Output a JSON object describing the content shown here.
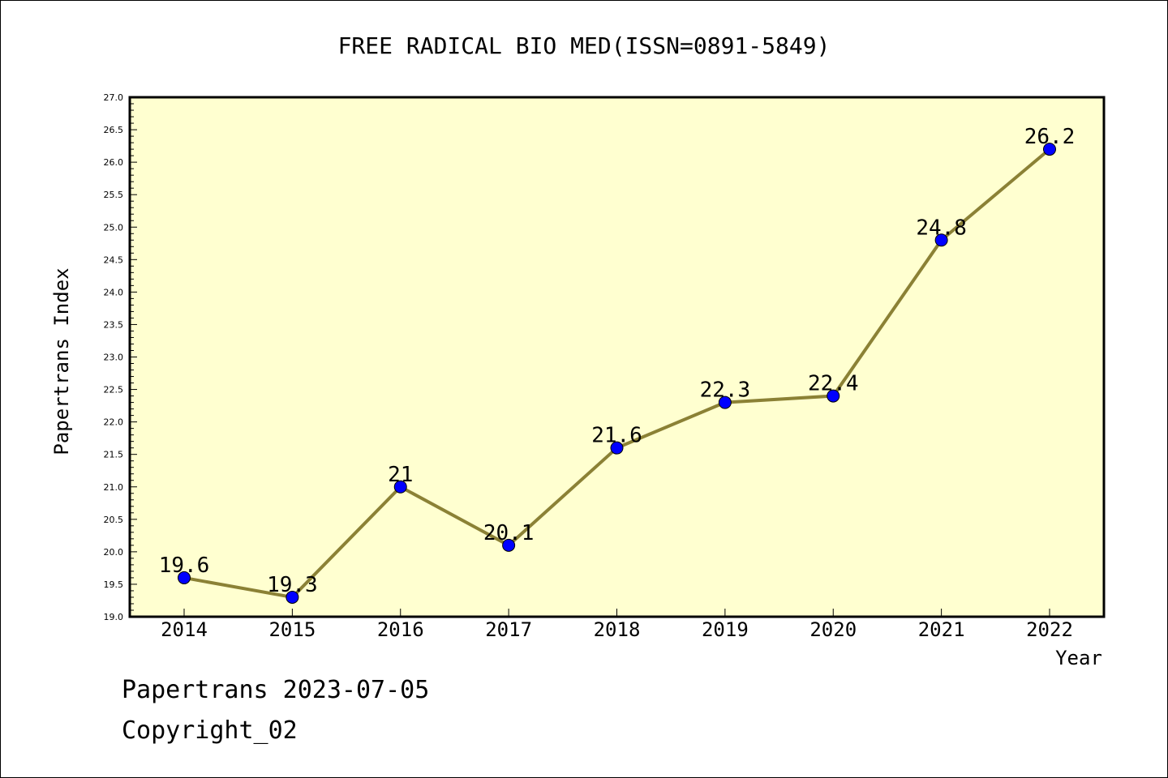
{
  "chart_data": {
    "type": "line",
    "title": "FREE RADICAL BIO MED(ISSN=0891-5849)",
    "xlabel": "Year",
    "ylabel": "Papertrans Index",
    "categories": [
      "2014",
      "2015",
      "2016",
      "2017",
      "2018",
      "2019",
      "2020",
      "2021",
      "2022"
    ],
    "values": [
      19.6,
      19.3,
      21.0,
      20.1,
      21.6,
      22.3,
      22.4,
      24.8,
      26.2
    ],
    "data_labels": [
      "19.6",
      "19.3",
      "21",
      "20.1",
      "21.6",
      "22.3",
      "22.4",
      "24.8",
      "26.2"
    ],
    "ylim": [
      19.0,
      27.0
    ],
    "yticks": [
      "19.0",
      "19.5",
      "20.0",
      "20.5",
      "21.0",
      "21.5",
      "22.0",
      "22.5",
      "23.0",
      "23.5",
      "24.0",
      "24.5",
      "25.0",
      "25.5",
      "26.0",
      "26.5",
      "27.0"
    ],
    "grid": false,
    "colors": {
      "plot_background": "#ffffd0",
      "line": "#8b8135",
      "marker": "#0000ff"
    }
  },
  "footer": {
    "line1": "Papertrans 2023-07-05",
    "line2": "Copyright_02"
  }
}
